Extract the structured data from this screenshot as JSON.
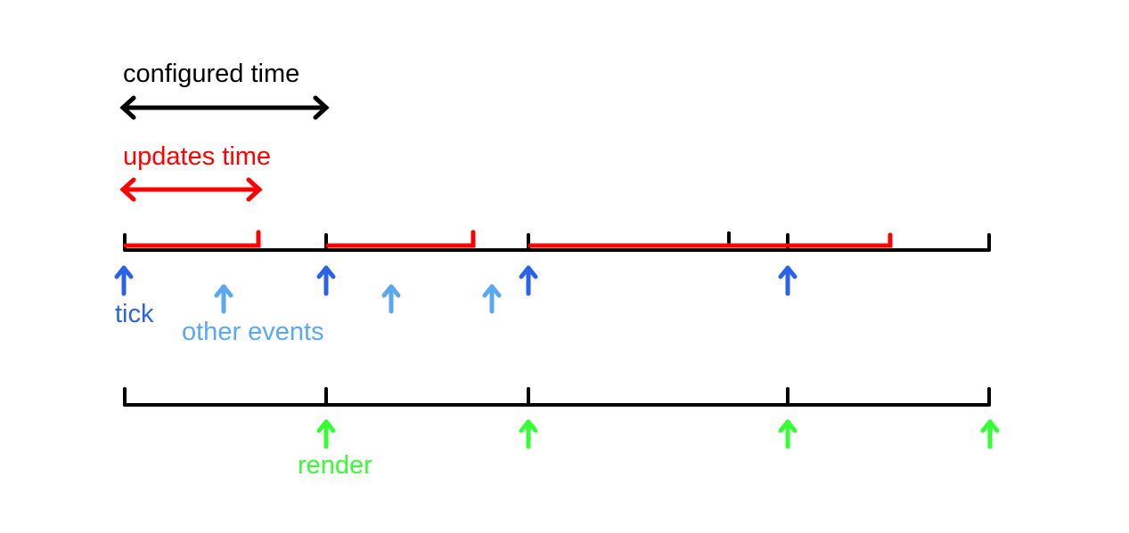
{
  "diagram": {
    "configured_time_label": "configured time",
    "updates_time_label": "updates time",
    "tick_label": "tick",
    "other_events_label": "other events",
    "render_label": "render"
  },
  "colors": {
    "timeline": "#000000",
    "configured": "#000000",
    "updates": "#ff0000",
    "tick": "#2b63e8",
    "other_events": "#5aa8f0",
    "render": "#33ff33"
  }
}
